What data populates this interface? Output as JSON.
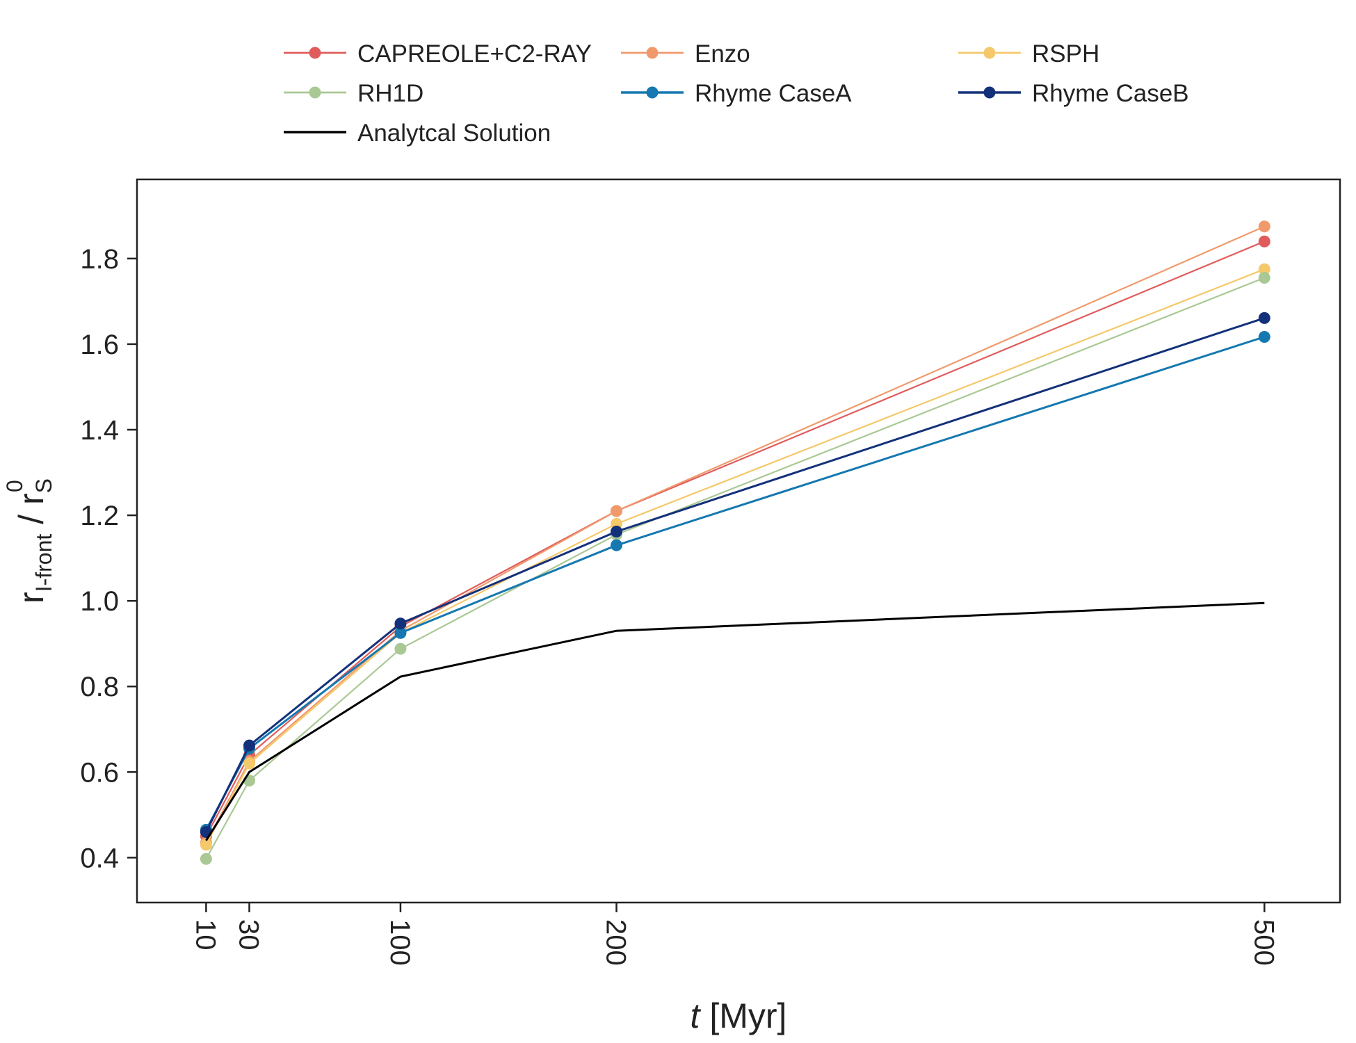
{
  "chart_data": {
    "type": "line",
    "title": "",
    "xlabel_var": "t",
    "xlabel_unit": " [Myr]",
    "ylabel_main": "r",
    "ylabel_sub": "I-front",
    "ylabel_sep": " / r",
    "ylabel_sub2": "S",
    "ylabel_sup2": "0",
    "x_ticks": [
      10,
      30,
      100,
      200,
      500
    ],
    "y_ticks": [
      "0.4",
      "0.6",
      "0.8",
      "1.0",
      "1.2",
      "1.4",
      "1.6",
      "1.8"
    ],
    "xlim": [
      -22,
      535
    ],
    "ylim": [
      0.295,
      1.985
    ],
    "grid": false,
    "legend_position": "top, above plot",
    "legend_columns": 3,
    "series": [
      {
        "name": "CAPREOLE+C2-RAY",
        "color": "#e05c5c",
        "markers": true,
        "width": 2.2,
        "x": [
          10,
          30,
          100,
          200,
          500
        ],
        "y": [
          0.45,
          0.64,
          0.94,
          1.21,
          1.84
        ]
      },
      {
        "name": "Enzo",
        "color": "#f09a6c",
        "markers": true,
        "width": 2.2,
        "x": [
          10,
          30,
          100,
          200,
          500
        ],
        "y": [
          0.435,
          0.625,
          0.93,
          1.21,
          1.875
        ]
      },
      {
        "name": "RSPH",
        "color": "#f5c86a",
        "markers": true,
        "width": 2.2,
        "x": [
          10,
          30,
          100,
          200,
          500
        ],
        "y": [
          0.43,
          0.62,
          0.925,
          1.18,
          1.775
        ]
      },
      {
        "name": "RH1D",
        "color": "#aac894",
        "markers": true,
        "width": 2.2,
        "x": [
          10,
          30,
          100,
          200,
          500
        ],
        "y": [
          0.397,
          0.58,
          0.888,
          1.155,
          1.755
        ]
      },
      {
        "name": "Rhyme CaseA",
        "color": "#1578b0",
        "markers": true,
        "width": 3,
        "x": [
          10,
          30,
          100,
          200,
          500
        ],
        "y": [
          0.465,
          0.655,
          0.925,
          1.13,
          1.617
        ]
      },
      {
        "name": "Rhyme CaseB",
        "color": "#13317a",
        "markers": true,
        "width": 3,
        "x": [
          10,
          30,
          100,
          200,
          500
        ],
        "y": [
          0.46,
          0.662,
          0.947,
          1.162,
          1.661
        ]
      },
      {
        "name": "Analytcal Solution",
        "color": "#000000",
        "markers": false,
        "width": 3,
        "x": [
          10,
          30,
          100,
          200,
          500
        ],
        "y": [
          0.44,
          0.6,
          0.823,
          0.93,
          0.995
        ]
      }
    ]
  }
}
